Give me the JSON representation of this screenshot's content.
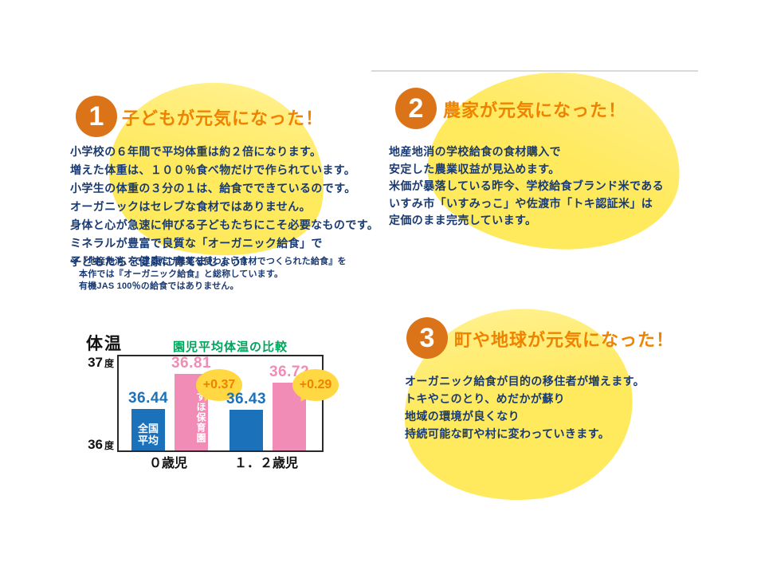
{
  "colors": {
    "accent_orange": "#db7418",
    "heading_orange": "#ef8200",
    "body_navy": "#1a3a72",
    "blob_yellow": "#ffe95c",
    "chart_green": "#00a45c",
    "bar_blue": "#1b72ba",
    "bar_pink": "#f08cb6",
    "bubble_yellow": "#ffd844",
    "bubble_text": "#ef8200"
  },
  "sections": [
    {
      "number": "1",
      "title": "子どもが元気になった！",
      "body_lines": [
        "小学校の６年間で平均体重は約２倍になります。",
        "増えた体重は、１００％食べ物だけで作られています。",
        "小学生の体重の３分の１は、給食でできているのです。",
        "オーガニックはセレブな食材ではありません。",
        "身体と心が急速に伸びる子どもたちにこそ必要なものです。",
        "ミネラルが豊富で良質な「オーガニック給食」で",
        "子どもたちを健康に育てましょう！"
      ],
      "footnote_lines": [
        "※『地産地消、できるだけ農薬を使わない食材でつくられた給食』を",
        "本作では『オーガニック給食』と総称しています。",
        "有機JAS 100％の給食ではありません。"
      ]
    },
    {
      "number": "2",
      "title": "農家が元気になった！",
      "body_lines": [
        "地産地消の学校給食の食材購入で",
        "安定した農業収益が見込めます。",
        "米価が暴落している昨今、学校給食ブランド米である",
        "いすみ市「いすみっこ」や佐渡市「トキ認証米」は",
        "定価のまま完売しています。"
      ]
    },
    {
      "number": "3",
      "title": "町や地球が元気になった！",
      "body_lines": [
        "オーガニック給食が目的の移住者が増えます。",
        "トキやこのとり、めだかが蘇り",
        "地域の環境が良くなり",
        "持続可能な町や村に変わっていきます。"
      ]
    }
  ],
  "chart_data": {
    "type": "bar",
    "title": "園児平均体温の比較",
    "axis_title": "体温",
    "categories": [
      "０歳児",
      "１．２歳児"
    ],
    "series": [
      {
        "name": "全国平均",
        "color": "#1b72ba",
        "values": [
          36.44,
          36.43
        ]
      },
      {
        "name": "みずほ保育園",
        "color": "#f08cb6",
        "values": [
          36.81,
          36.72
        ]
      }
    ],
    "bar_inner_labels": {
      "blue": "全国\n平均",
      "pink": "みずほ保育園"
    },
    "diff_labels": [
      "+0.37",
      "+0.29"
    ],
    "ylim": [
      36,
      37
    ],
    "yticks": [
      {
        "num": "37",
        "unit": "度"
      },
      {
        "num": "36",
        "unit": "度"
      }
    ],
    "grid": false,
    "legend_position": "none"
  }
}
